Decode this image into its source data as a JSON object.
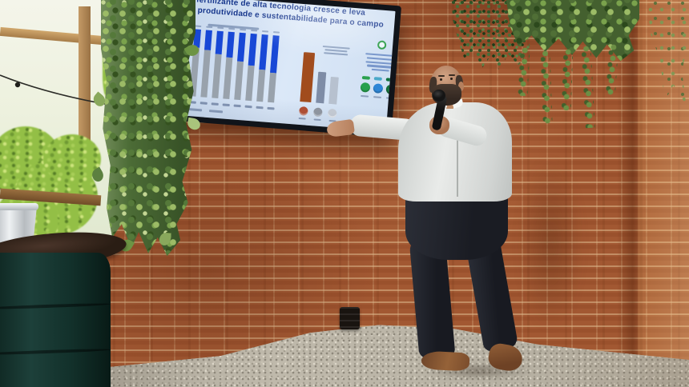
{
  "scene": {
    "setting": "Man presenting a slide on a wall-mounted TV against a rustic brick wall in a greenhouse-style venue with ferns, hanging pothos vines, a gravel floor and a barrel table with a metal bucket",
    "objects": {
      "tv": "wall-mounted television showing presentation slide",
      "presenter": "bald bearded man in light gray shirt holding microphone, pointing at screen",
      "barrel_table": "dark green drum barrel with wooden top",
      "bucket": "galvanized metal bucket",
      "plants": "ferns and trailing pothos vines",
      "floor": "light gravel",
      "outlet": "black wall power outlet"
    },
    "colors": {
      "brick_shadow": "#9a5530",
      "brick_mid": "#b0613a",
      "brick_lit": "#c97e49",
      "mortar": "#dcb88c",
      "gravel": "#b8b2a5",
      "barrel_green": "#122e27",
      "barrel_top_wood": "#2e1f16",
      "bucket_metal": "#c9ced2",
      "shirt": "#e4e7e4",
      "pants": "#23262e",
      "shoes": "#8a5634",
      "skin": "#c39277",
      "screen_bg": "#cdddf1",
      "title_blue": "#16368c"
    }
  },
  "slide": {
    "title_line1": "fertilizante de alta tecnologia cresce e leva",
    "title_line2": "mais produtividade e sustentabilidade para o campo"
  },
  "chart_data": [
    {
      "type": "bar",
      "stacked": true,
      "title": "fertilizante de alta tecnologia cresce e leva mais produtividade e sustentabilidade para o campo",
      "categories": [
        "",
        "",
        "",
        "",
        "",
        "",
        "",
        "",
        "",
        ""
      ],
      "series": [
        {
          "name": "gray-base-segment",
          "color": "#99a2ac",
          "values": [
            78,
            76,
            73,
            70,
            66,
            62,
            57,
            52,
            48,
            44
          ]
        },
        {
          "name": "blue-top-segment",
          "color": "#1848d6",
          "values": [
            22,
            24,
            27,
            30,
            34,
            38,
            43,
            48,
            52,
            56
          ]
        }
      ],
      "ylim": [
        0,
        100
      ],
      "legend_position": "bottom"
    },
    {
      "type": "bar",
      "categories": [
        "",
        "",
        ""
      ],
      "values": [
        100,
        63,
        55
      ],
      "colors": [
        "#a14c1d",
        "#7e8ca6",
        "#b7c1cf"
      ]
    }
  ]
}
